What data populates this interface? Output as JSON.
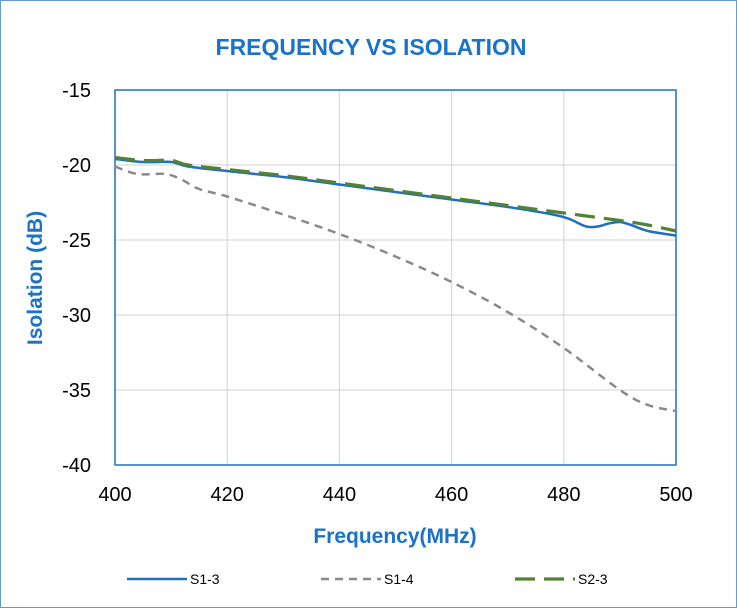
{
  "chart_data": {
    "type": "line",
    "title": "FREQUENCY VS ISOLATION",
    "xlabel": "Frequency(MHz)",
    "ylabel": "Isolation (dB)",
    "xlim": [
      400,
      500
    ],
    "ylim": [
      -40,
      -15
    ],
    "x_ticks": [
      "400",
      "420",
      "440",
      "460",
      "480",
      "500"
    ],
    "y_ticks": [
      "-15",
      "-20",
      "-25",
      "-30",
      "-35",
      "-40"
    ],
    "grid": true,
    "legend_position": "bottom",
    "series": [
      {
        "name": "S1-3",
        "color": "#1f6fc4",
        "dash": "solid",
        "x": [
          400,
          405,
          410,
          413,
          420,
          430,
          440,
          450,
          460,
          470,
          478,
          481,
          484,
          486,
          488,
          490,
          492,
          495,
          500
        ],
        "y": [
          -19.6,
          -19.8,
          -19.8,
          -20.1,
          -20.4,
          -20.8,
          -21.3,
          -21.8,
          -22.3,
          -22.8,
          -23.3,
          -23.6,
          -24.1,
          -24.1,
          -23.9,
          -23.8,
          -24.0,
          -24.4,
          -24.7
        ]
      },
      {
        "name": "S1-4",
        "color": "#8a8a8a",
        "dash": "short-dash",
        "x": [
          400,
          404,
          409,
          412,
          415,
          420,
          430,
          440,
          450,
          460,
          470,
          480,
          490,
          495,
          500
        ],
        "y": [
          -20.1,
          -20.6,
          -20.6,
          -21.0,
          -21.6,
          -22.1,
          -23.3,
          -24.6,
          -26.1,
          -27.8,
          -29.8,
          -32.2,
          -35.0,
          -36.0,
          -36.4
        ]
      },
      {
        "name": "S2-3",
        "color": "#538135",
        "dash": "long-dash",
        "x": [
          400,
          405,
          410,
          413,
          420,
          430,
          440,
          450,
          460,
          470,
          480,
          490,
          495,
          500
        ],
        "y": [
          -19.5,
          -19.7,
          -19.7,
          -20.0,
          -20.3,
          -20.7,
          -21.2,
          -21.7,
          -22.2,
          -22.7,
          -23.2,
          -23.7,
          -24.0,
          -24.4
        ]
      }
    ]
  }
}
